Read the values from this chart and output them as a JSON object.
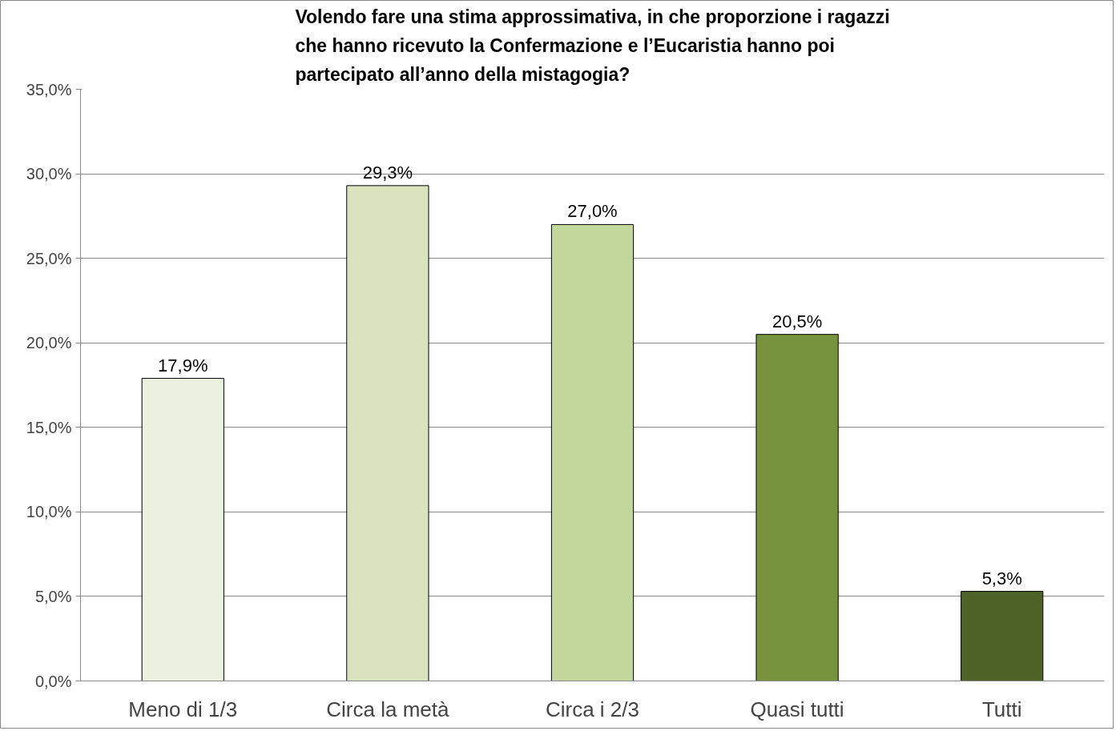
{
  "chart_data": {
    "type": "bar",
    "title": "Volendo fare una stima approssimativa, in che proporzione i ragazzi che hanno ricevuto la Confermazione e l’Eucaristia hanno poi partecipato all’anno della mistagogia?",
    "categories": [
      "Meno di 1/3",
      "Circa la metà",
      "Circa i 2/3",
      "Quasi tutti",
      "Tutti"
    ],
    "values": [
      17.9,
      29.3,
      27.0,
      20.5,
      5.3
    ],
    "value_labels": [
      "17,9%",
      "29,3%",
      "27,0%",
      "20,5%",
      "5,3%"
    ],
    "colors": [
      "#ebf1de",
      "#d7e4bd",
      "#c3d69b",
      "#77933c",
      "#4f6228"
    ],
    "ylim": [
      0,
      35
    ],
    "yticks": [
      {
        "value": 0,
        "label": "0,0%"
      },
      {
        "value": 5,
        "label": "5,0%"
      },
      {
        "value": 10,
        "label": "10,0%"
      },
      {
        "value": 15,
        "label": "15,0%"
      },
      {
        "value": 20,
        "label": "20,0%"
      },
      {
        "value": 25,
        "label": "25,0%"
      },
      {
        "value": 30,
        "label": "30,0%"
      },
      {
        "value": 35,
        "label": "35,0%"
      }
    ],
    "grid": "y"
  }
}
